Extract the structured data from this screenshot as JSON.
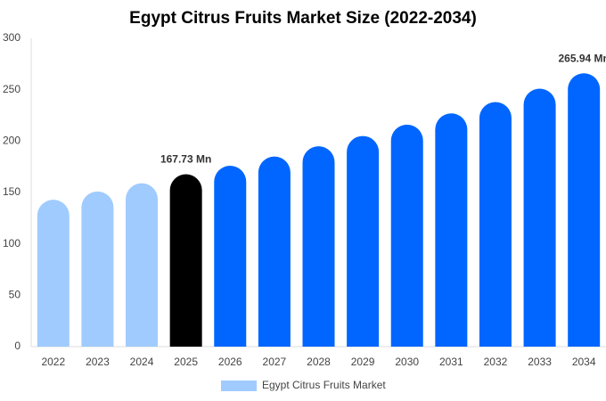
{
  "chart_data": {
    "type": "bar",
    "title": "Egypt Citrus Fruits Market Size (2022-2034)",
    "categories": [
      "2022",
      "2023",
      "2024",
      "2025",
      "2026",
      "2027",
      "2028",
      "2029",
      "2030",
      "2031",
      "2032",
      "2033",
      "2034"
    ],
    "series": [
      {
        "name": "Egypt Citrus Fruits Market",
        "color": "#a0cbff",
        "colors": [
          "#a0cbff",
          "#a0cbff",
          "#a0cbff",
          "#000000",
          "#0066ff",
          "#0066ff",
          "#0066ff",
          "#0066ff",
          "#0066ff",
          "#0066ff",
          "#0066ff",
          "#0066ff",
          "#0066ff"
        ],
        "values": [
          143,
          151,
          159,
          167.73,
          176,
          185,
          195,
          205,
          216,
          227,
          238,
          251,
          265.94
        ],
        "value_labels": [
          null,
          null,
          null,
          "167.73 Mn",
          null,
          null,
          null,
          null,
          null,
          null,
          null,
          null,
          "265.94 Mn"
        ]
      }
    ],
    "ylim": [
      0,
      300
    ],
    "yticks": [
      0,
      50,
      100,
      150,
      200,
      250,
      300
    ],
    "grid": false,
    "legend": "bottom"
  }
}
